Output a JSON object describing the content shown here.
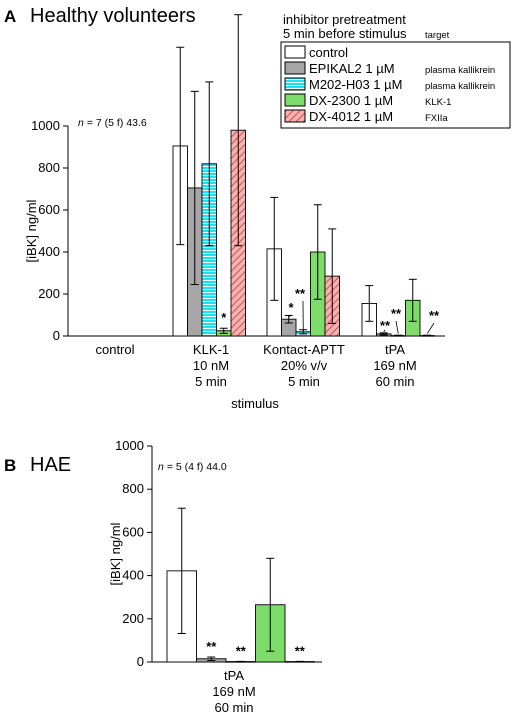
{
  "panels": [
    {
      "letter": "A",
      "title": "Healthy volunteers",
      "annotation": {
        "n_italic": "n",
        "rest": "= 7 (5 f) 43.6"
      },
      "legend": {
        "header_line1": "inhibitor pretreatment",
        "header_line2": "5 min before stimulus",
        "target_header": "target",
        "items": [
          {
            "name": "control",
            "dose": "",
            "target": ""
          },
          {
            "name": "EPIKAL2",
            "dose": "1 µM",
            "target": "plasma kallikrein"
          },
          {
            "name": "M202-H03",
            "dose": "1 µM",
            "target": "plasma kallikrein"
          },
          {
            "name": "DX-2300",
            "dose": "1 µM",
            "target": "KLK-1"
          },
          {
            "name": "DX-4012",
            "dose": "1 µM",
            "target": "FXIIa"
          }
        ]
      },
      "colors": {
        "control": "#ffffff",
        "EPIKAL2": "#a6a6a6",
        "M202-H03": "#1fe0f0",
        "DX-2300": "#7ddc6a",
        "DX-4012": "#f0a8a8"
      }
    },
    {
      "letter": "B",
      "title": "HAE",
      "annotation": {
        "n_italic": "n",
        "rest": "= 5 (4 f) 44.0"
      }
    }
  ],
  "chart_data": [
    {
      "type": "bar",
      "title": "Healthy volunteers",
      "xlabel": "stimulus",
      "ylabel": "[iBK]  ng/ml",
      "ylim": [
        0,
        1000
      ],
      "yticks": [
        "0",
        "200",
        "400",
        "600",
        "800",
        "1000"
      ],
      "categories": [
        [
          "control"
        ],
        [
          "KLK-1",
          "10 nM",
          "5 min"
        ],
        [
          "Kontact-APTT",
          "20% v/v",
          "5 min"
        ],
        [
          "tPA",
          "169 nM",
          "60 min"
        ]
      ],
      "series": [
        {
          "name": "control",
          "values": [
            0,
            905,
            415,
            155
          ],
          "errors": [
            0,
            470,
            245,
            85
          ],
          "sig": [
            "",
            "",
            "",
            ""
          ]
        },
        {
          "name": "EPIKAL2",
          "values": [
            0,
            705,
            80,
            10
          ],
          "errors": [
            0,
            460,
            18,
            5
          ],
          "sig": [
            "",
            "",
            "*",
            "**"
          ]
        },
        {
          "name": "M202-H03",
          "values": [
            0,
            820,
            20,
            2
          ],
          "errors": [
            0,
            390,
            10,
            2
          ],
          "sig": [
            "",
            "",
            "**",
            "**"
          ]
        },
        {
          "name": "DX-2300",
          "values": [
            0,
            25,
            400,
            170
          ],
          "errors": [
            0,
            12,
            225,
            100
          ],
          "sig": [
            "",
            "*",
            "",
            ""
          ]
        },
        {
          "name": "DX-4012",
          "values": [
            0,
            980,
            285,
            2
          ],
          "errors": [
            0,
            550,
            225,
            2
          ],
          "sig": [
            "",
            "",
            "",
            "**"
          ]
        }
      ]
    },
    {
      "type": "bar",
      "title": "HAE",
      "xlabel": "",
      "ylabel": "[iBK]  ng/ml",
      "ylim": [
        0,
        1000
      ],
      "yticks": [
        "0",
        "200",
        "400",
        "600",
        "800",
        "1000"
      ],
      "categories": [
        [
          "tPA",
          "169 nM",
          "60 min"
        ]
      ],
      "series": [
        {
          "name": "control",
          "values": [
            422
          ],
          "errors": [
            290
          ],
          "sig": [
            ""
          ]
        },
        {
          "name": "EPIKAL2",
          "values": [
            15
          ],
          "errors": [
            8
          ],
          "sig": [
            "**"
          ]
        },
        {
          "name": "M202-H03",
          "values": [
            2
          ],
          "errors": [
            1
          ],
          "sig": [
            "**"
          ]
        },
        {
          "name": "DX-2300",
          "values": [
            265
          ],
          "errors": [
            215
          ],
          "sig": [
            ""
          ]
        },
        {
          "name": "DX-4012",
          "values": [
            2
          ],
          "errors": [
            1
          ],
          "sig": [
            "**"
          ]
        }
      ]
    }
  ]
}
